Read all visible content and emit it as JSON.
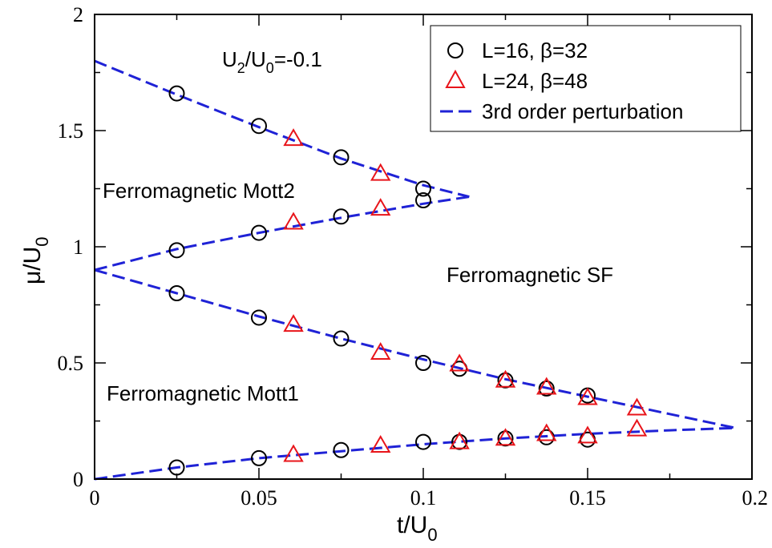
{
  "chart_data": {
    "type": "scatter",
    "title": "",
    "xlabel": "t/U",
    "xlabel_sub": "0",
    "ylabel": "μ/U",
    "ylabel_sub": "0",
    "xlim": [
      0,
      0.2
    ],
    "ylim": [
      0,
      2
    ],
    "xticks": [
      0,
      0.05,
      0.1,
      0.15,
      0.2
    ],
    "xtick_labels": [
      "0",
      "0.05",
      "0.1",
      "0.15",
      "0.2"
    ],
    "yticks": [
      0,
      0.5,
      1,
      1.5,
      2
    ],
    "ytick_labels": [
      "0",
      "0.5",
      "1",
      "1.5",
      "2"
    ],
    "grid": false,
    "legend_position": "top-right",
    "colors": {
      "circles": "#000000",
      "triangles": "#e8141a",
      "perturbation": "#1f22d6"
    },
    "annotations": {
      "ratio": {
        "a": "U",
        "a_sub": "2",
        "mid": "/U",
        "b_sub": "0",
        "tail": "=-0.1"
      },
      "mott2": "Ferromagnetic Mott2",
      "mott1": "Ferromagnetic Mott1",
      "sf": "Ferromagnetic SF"
    },
    "series": [
      {
        "name": "L=16, β=32",
        "marker": "circle",
        "points": [
          [
            0.025,
            1.66
          ],
          [
            0.05,
            1.52
          ],
          [
            0.075,
            1.385
          ],
          [
            0.1,
            1.25
          ],
          [
            0.025,
            0.985
          ],
          [
            0.05,
            1.06
          ],
          [
            0.075,
            1.13
          ],
          [
            0.1,
            1.2
          ],
          [
            0.025,
            0.8
          ],
          [
            0.05,
            0.695
          ],
          [
            0.075,
            0.605
          ],
          [
            0.1,
            0.5
          ],
          [
            0.111,
            0.475
          ],
          [
            0.125,
            0.425
          ],
          [
            0.1375,
            0.39
          ],
          [
            0.15,
            0.36
          ],
          [
            0.025,
            0.05
          ],
          [
            0.05,
            0.09
          ],
          [
            0.075,
            0.125
          ],
          [
            0.1,
            0.16
          ],
          [
            0.111,
            0.16
          ],
          [
            0.125,
            0.175
          ],
          [
            0.1375,
            0.18
          ],
          [
            0.15,
            0.17
          ]
        ]
      },
      {
        "name": "L=24, β=48",
        "marker": "triangle",
        "points": [
          [
            0.0605,
            1.465
          ],
          [
            0.087,
            1.315
          ],
          [
            0.0605,
            1.105
          ],
          [
            0.087,
            1.165
          ],
          [
            0.0605,
            0.665
          ],
          [
            0.087,
            0.545
          ],
          [
            0.111,
            0.495
          ],
          [
            0.125,
            0.425
          ],
          [
            0.1375,
            0.395
          ],
          [
            0.15,
            0.35
          ],
          [
            0.165,
            0.305
          ],
          [
            0.0605,
            0.105
          ],
          [
            0.087,
            0.145
          ],
          [
            0.111,
            0.16
          ],
          [
            0.125,
            0.175
          ],
          [
            0.1375,
            0.195
          ],
          [
            0.15,
            0.185
          ],
          [
            0.165,
            0.215
          ]
        ]
      },
      {
        "name": "3rd order perturbation",
        "marker": "dashed-line",
        "lines": [
          [
            [
              0,
              1.8
            ],
            [
              0.025,
              1.655
            ],
            [
              0.05,
              1.515
            ],
            [
              0.075,
              1.38
            ],
            [
              0.1,
              1.265
            ],
            [
              0.114,
              1.215
            ]
          ],
          [
            [
              0,
              0.9
            ],
            [
              0.025,
              0.99
            ],
            [
              0.05,
              1.06
            ],
            [
              0.075,
              1.125
            ],
            [
              0.1,
              1.185
            ],
            [
              0.114,
              1.215
            ]
          ],
          [
            [
              0,
              0.9
            ],
            [
              0.025,
              0.8
            ],
            [
              0.05,
              0.7
            ],
            [
              0.075,
              0.605
            ],
            [
              0.1,
              0.515
            ],
            [
              0.125,
              0.43
            ],
            [
              0.15,
              0.355
            ],
            [
              0.175,
              0.28
            ],
            [
              0.195,
              0.22
            ]
          ],
          [
            [
              0,
              0
            ],
            [
              0.025,
              0.05
            ],
            [
              0.05,
              0.09
            ],
            [
              0.075,
              0.12
            ],
            [
              0.1,
              0.15
            ],
            [
              0.125,
              0.175
            ],
            [
              0.15,
              0.195
            ],
            [
              0.175,
              0.21
            ],
            [
              0.195,
              0.22
            ]
          ]
        ]
      }
    ]
  }
}
